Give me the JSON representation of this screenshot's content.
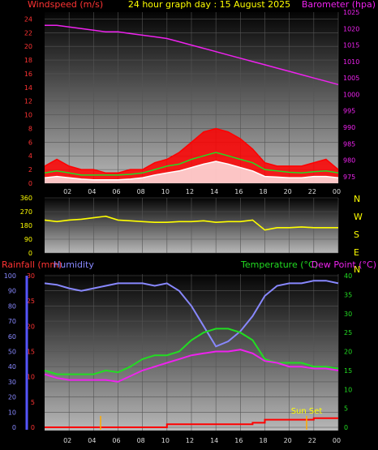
{
  "title": "24 hour graph day : 15 August 2025",
  "chart_data": [
    {
      "type": "line",
      "panel": "wind_baro",
      "left_axis_label": "Windspeed (m/s)",
      "right_axis_label": "Barometer (hpa)",
      "left_ticks": [
        "0",
        "2",
        "4",
        "6",
        "8",
        "10",
        "12",
        "14",
        "16",
        "18",
        "20",
        "22",
        "24"
      ],
      "right_ticks": [
        "975",
        "980",
        "985",
        "990",
        "995",
        "1000",
        "1005",
        "1010",
        "1015",
        "1020",
        "1025"
      ],
      "x_ticks": [
        "02",
        "04",
        "06",
        "08",
        "10",
        "12",
        "14",
        "16",
        "18",
        "20",
        "22",
        "00"
      ],
      "left_range": [
        0,
        25
      ],
      "right_range": [
        973,
        1025
      ],
      "x_range": [
        0,
        24
      ],
      "grid": true,
      "series": [
        {
          "axis": "right",
          "color": "#ee22ee",
          "x": [
            0,
            1,
            2,
            3,
            4,
            5,
            6,
            7,
            8,
            9,
            10,
            11,
            12,
            13,
            14,
            15,
            16,
            17,
            18,
            19,
            20,
            21,
            22,
            23,
            24
          ],
          "y": [
            1021,
            1021,
            1020.5,
            1020,
            1019.5,
            1019,
            1019,
            1018.5,
            1018,
            1017.5,
            1017,
            1016,
            1015,
            1014,
            1013,
            1012,
            1011,
            1010,
            1009,
            1008,
            1007,
            1006,
            1005,
            1004,
            1003
          ]
        },
        {
          "axis": "left",
          "color": "#ff0000",
          "fill": true,
          "x": [
            0,
            1,
            2,
            3,
            4,
            5,
            6,
            7,
            8,
            9,
            10,
            11,
            12,
            13,
            14,
            15,
            16,
            17,
            18,
            19,
            20,
            21,
            22,
            23,
            24
          ],
          "y": [
            2.5,
            3.5,
            2.5,
            2,
            2,
            1.5,
            1.5,
            2,
            2,
            3,
            3.5,
            4.5,
            6,
            7.5,
            8,
            7.5,
            6.5,
            5,
            3,
            2.5,
            2.5,
            2.5,
            3,
            3.5,
            2
          ]
        },
        {
          "axis": "left",
          "color": "#22dd22",
          "x": [
            0,
            1,
            2,
            3,
            4,
            5,
            6,
            7,
            8,
            9,
            10,
            11,
            12,
            13,
            14,
            15,
            16,
            17,
            18,
            19,
            20,
            21,
            22,
            23,
            24
          ],
          "y": [
            1.5,
            1.8,
            1.5,
            1.2,
            1.2,
            1.2,
            1.2,
            1.3,
            1.5,
            2,
            2.5,
            2.8,
            3.5,
            4,
            4.5,
            4,
            3.5,
            3,
            2,
            1.8,
            1.6,
            1.5,
            1.7,
            1.8,
            1.5
          ]
        },
        {
          "axis": "left",
          "color": "#ffffff",
          "fill": true,
          "x": [
            0,
            1,
            2,
            3,
            4,
            5,
            6,
            7,
            8,
            9,
            10,
            11,
            12,
            13,
            14,
            15,
            16,
            17,
            18,
            19,
            20,
            21,
            22,
            23,
            24
          ],
          "y": [
            0.8,
            1,
            0.8,
            0.6,
            0.5,
            0.5,
            0.5,
            0.6,
            0.8,
            1.2,
            1.5,
            1.8,
            2.3,
            2.8,
            3.2,
            2.8,
            2.3,
            1.8,
            1,
            0.9,
            0.8,
            0.8,
            1,
            1,
            0.8
          ]
        }
      ]
    },
    {
      "type": "line",
      "panel": "wind_direction",
      "left_ticks": [
        "0",
        "90",
        "180",
        "270",
        "360"
      ],
      "right_labels": [
        "N",
        "W",
        "S",
        "E",
        "N"
      ],
      "left_range": [
        0,
        360
      ],
      "x_range": [
        0,
        24
      ],
      "grid": true,
      "series": [
        {
          "axis": "left",
          "color": "#ffff00",
          "x": [
            0,
            1,
            2,
            3,
            4,
            5,
            6,
            7,
            8,
            9,
            10,
            11,
            12,
            13,
            14,
            15,
            16,
            17,
            18,
            19,
            20,
            21,
            22,
            23,
            24
          ],
          "y": [
            215,
            205,
            215,
            220,
            230,
            240,
            215,
            210,
            205,
            200,
            200,
            205,
            205,
            210,
            200,
            205,
            205,
            215,
            150,
            165,
            165,
            170,
            165,
            165,
            165
          ]
        }
      ]
    },
    {
      "type": "line",
      "panel": "rain_humidity_temp",
      "left_label_rain": "Rainfall (mm)",
      "left_label_humidity": "Humidity",
      "right_label_temp": "Temperature (°C)",
      "right_label_dew": "Dew Point (°C)",
      "rain_ticks": [
        "0",
        "10",
        "20",
        "30",
        "40",
        "50",
        "60",
        "70",
        "80",
        "90",
        "100"
      ],
      "humidity_ticks": [
        "0",
        "5",
        "10",
        "15",
        "20",
        "25",
        "30"
      ],
      "temp_ticks": [
        "0",
        "5",
        "10",
        "15",
        "20",
        "25",
        "30",
        "35",
        "40"
      ],
      "x_ticks": [
        "02",
        "04",
        "06",
        "08",
        "10",
        "12",
        "14",
        "16",
        "18",
        "20",
        "22",
        "00"
      ],
      "annotation": "Sun Set",
      "x_range": [
        0,
        24
      ],
      "grid": true,
      "series": [
        {
          "axis": "humidity",
          "color": "#8888ff",
          "x": [
            0,
            1,
            2,
            3,
            4,
            5,
            6,
            7,
            8,
            9,
            10,
            11,
            12,
            13,
            14,
            15,
            16,
            17,
            18,
            19,
            20,
            21,
            22,
            23,
            24
          ],
          "y": [
            28.5,
            28.2,
            27.5,
            27,
            27.5,
            28,
            28.5,
            28.5,
            28.5,
            28,
            28.5,
            27,
            24,
            20,
            16,
            17,
            19,
            22,
            26,
            28,
            28.5,
            28.5,
            29,
            29,
            28.5
          ]
        },
        {
          "axis": "temp",
          "color": "#22dd22",
          "x": [
            0,
            1,
            2,
            3,
            4,
            5,
            6,
            7,
            8,
            9,
            10,
            11,
            12,
            13,
            14,
            15,
            16,
            17,
            18,
            19,
            20,
            21,
            22,
            23,
            24
          ],
          "y": [
            15,
            14,
            14,
            14,
            14,
            15,
            14.5,
            16,
            18,
            19,
            19,
            20,
            23,
            25,
            26,
            26,
            25,
            23,
            18,
            17,
            17,
            17,
            16,
            16,
            15.5
          ]
        },
        {
          "axis": "temp",
          "color": "#ee22ee",
          "x": [
            0,
            1,
            2,
            3,
            4,
            5,
            6,
            7,
            8,
            9,
            10,
            11,
            12,
            13,
            14,
            15,
            16,
            17,
            18,
            19,
            20,
            21,
            22,
            23,
            24
          ],
          "y": [
            14,
            13,
            12.5,
            12.5,
            12.5,
            12.5,
            12,
            13.5,
            15,
            16,
            17,
            18,
            19,
            19.5,
            20,
            20,
            20.5,
            19.5,
            17.5,
            17,
            16,
            16,
            15.5,
            15.5,
            15
          ]
        },
        {
          "axis": "rain",
          "color": "#ff0000",
          "x": [
            0,
            1,
            2,
            3,
            4,
            5,
            6,
            7,
            8,
            9,
            10,
            11,
            12,
            13,
            14,
            15,
            16,
            17,
            18,
            19,
            20,
            21,
            22,
            23,
            24
          ],
          "y": [
            0,
            0,
            0,
            0,
            0,
            0,
            0,
            0,
            0,
            0,
            2,
            2,
            2,
            2,
            2,
            2,
            2,
            3,
            5,
            5,
            5,
            5,
            6,
            6,
            6
          ]
        }
      ]
    }
  ]
}
